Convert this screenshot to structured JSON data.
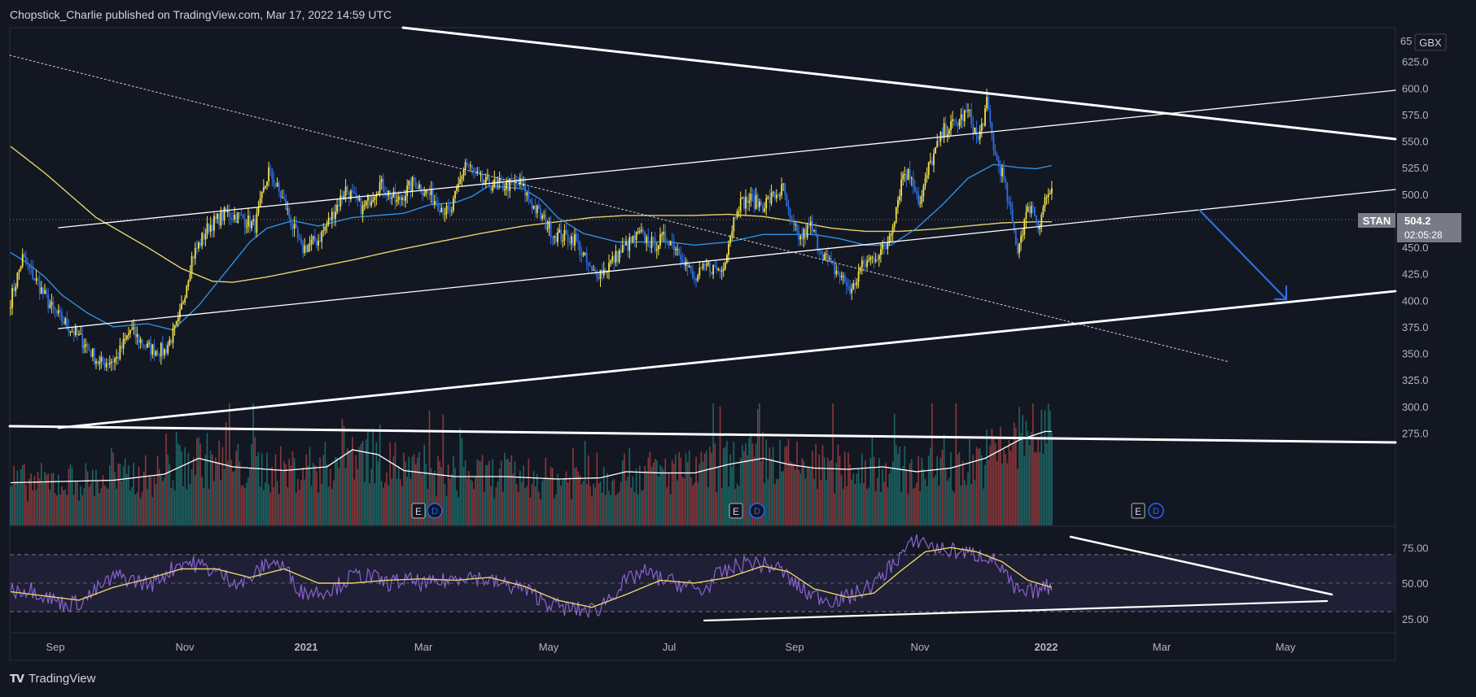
{
  "header": {
    "publisher": "Chopstick_Charlie published on TradingView.com, Mar 17, 2022 14:59 UTC"
  },
  "footer": {
    "brand": "TradingView"
  },
  "chart_data": {
    "type": "candlestick",
    "symbol": "STAN",
    "currency": "GBX",
    "last_price": "504.2",
    "countdown": "02:05:28",
    "price_axis": {
      "ticks": [
        "625.0",
        "600.0",
        "575.0",
        "550.0",
        "525.0",
        "500.0",
        "475.0",
        "450.0",
        "425.0",
        "400.0",
        "375.0",
        "350.0",
        "325.0",
        "300.0",
        "275.0"
      ],
      "top_partial": "65",
      "range": [
        260,
        660
      ]
    },
    "rsi_axis": {
      "ticks": [
        "75.00",
        "50.00",
        "25.00"
      ],
      "range": [
        15,
        90
      ],
      "band": [
        30,
        70
      ]
    },
    "time_axis": {
      "labels": [
        "Sep",
        "Nov",
        "2021",
        "Mar",
        "May",
        "Jul",
        "Sep",
        "Nov",
        "2022",
        "Mar",
        "May"
      ]
    },
    "earnings_markers": [
      {
        "date": "2021-02",
        "labels": [
          "E",
          "D"
        ]
      },
      {
        "date": "2021-07",
        "labels": [
          "E",
          "D"
        ]
      },
      {
        "date": "2022-02",
        "labels": [
          "E",
          "D"
        ]
      }
    ],
    "price_anchors": [
      [
        0,
        400
      ],
      [
        7,
        440
      ],
      [
        25,
        390
      ],
      [
        43,
        360
      ],
      [
        52,
        340
      ],
      [
        62,
        345
      ],
      [
        70,
        372
      ],
      [
        80,
        355
      ],
      [
        90,
        352
      ],
      [
        98,
        378
      ],
      [
        106,
        440
      ],
      [
        116,
        470
      ],
      [
        126,
        482
      ],
      [
        135,
        478
      ],
      [
        143,
        470
      ],
      [
        151,
        522
      ],
      [
        160,
        492
      ],
      [
        170,
        448
      ],
      [
        180,
        457
      ],
      [
        188,
        480
      ],
      [
        196,
        505
      ],
      [
        206,
        486
      ],
      [
        216,
        510
      ],
      [
        226,
        492
      ],
      [
        236,
        512
      ],
      [
        246,
        498
      ],
      [
        257,
        480
      ],
      [
        266,
        530
      ],
      [
        276,
        510
      ],
      [
        288,
        508
      ],
      [
        298,
        510
      ],
      [
        306,
        488
      ],
      [
        318,
        462
      ],
      [
        330,
        458
      ],
      [
        340,
        425
      ],
      [
        347,
        428
      ],
      [
        358,
        448
      ],
      [
        368,
        462
      ],
      [
        376,
        452
      ],
      [
        384,
        460
      ],
      [
        392,
        445
      ],
      [
        400,
        418
      ],
      [
        407,
        432
      ],
      [
        416,
        428
      ],
      [
        425,
        490
      ],
      [
        432,
        495
      ],
      [
        440,
        490
      ],
      [
        448,
        500
      ],
      [
        452,
        505
      ],
      [
        456,
        472
      ],
      [
        462,
        458
      ],
      [
        468,
        470
      ],
      [
        473,
        450
      ],
      [
        480,
        432
      ],
      [
        486,
        422
      ],
      [
        492,
        408
      ],
      [
        497,
        430
      ],
      [
        504,
        440
      ],
      [
        512,
        450
      ],
      [
        517,
        480
      ],
      [
        522,
        520
      ],
      [
        527,
        518
      ],
      [
        532,
        490
      ],
      [
        537,
        525
      ],
      [
        546,
        560
      ],
      [
        554,
        568
      ],
      [
        560,
        578
      ],
      [
        566,
        550
      ],
      [
        571,
        585
      ],
      [
        576,
        535
      ],
      [
        580,
        520
      ],
      [
        585,
        480
      ],
      [
        589,
        448
      ],
      [
        593,
        475
      ],
      [
        597,
        492
      ],
      [
        601,
        470
      ],
      [
        605,
        495
      ],
      [
        609,
        504
      ]
    ],
    "sma_blue_anchors": [
      [
        0,
        445
      ],
      [
        10,
        435
      ],
      [
        20,
        422
      ],
      [
        30,
        405
      ],
      [
        45,
        388
      ],
      [
        60,
        375
      ],
      [
        80,
        378
      ],
      [
        95,
        372
      ],
      [
        110,
        395
      ],
      [
        125,
        425
      ],
      [
        140,
        455
      ],
      [
        150,
        468
      ],
      [
        165,
        475
      ],
      [
        180,
        470
      ],
      [
        200,
        478
      ],
      [
        215,
        480
      ],
      [
        230,
        482
      ],
      [
        245,
        490
      ],
      [
        260,
        492
      ],
      [
        270,
        498
      ],
      [
        280,
        508
      ],
      [
        300,
        505
      ],
      [
        310,
        495
      ],
      [
        320,
        478
      ],
      [
        335,
        463
      ],
      [
        355,
        455
      ],
      [
        370,
        455
      ],
      [
        385,
        455
      ],
      [
        400,
        452
      ],
      [
        420,
        455
      ],
      [
        440,
        462
      ],
      [
        455,
        462
      ],
      [
        470,
        462
      ],
      [
        485,
        458
      ],
      [
        500,
        452
      ],
      [
        515,
        452
      ],
      [
        530,
        468
      ],
      [
        545,
        490
      ],
      [
        560,
        515
      ],
      [
        575,
        528
      ],
      [
        590,
        525
      ],
      [
        600,
        524
      ],
      [
        609,
        527
      ]
    ],
    "sma_yellow_anchors": [
      [
        0,
        545
      ],
      [
        20,
        520
      ],
      [
        50,
        478
      ],
      [
        80,
        450
      ],
      [
        100,
        430
      ],
      [
        118,
        418
      ],
      [
        130,
        417
      ],
      [
        150,
        422
      ],
      [
        175,
        430
      ],
      [
        200,
        438
      ],
      [
        225,
        447
      ],
      [
        250,
        455
      ],
      [
        275,
        463
      ],
      [
        300,
        470
      ],
      [
        320,
        474
      ],
      [
        340,
        478
      ],
      [
        360,
        480
      ],
      [
        380,
        480
      ],
      [
        400,
        480
      ],
      [
        420,
        481
      ],
      [
        440,
        479
      ],
      [
        460,
        474
      ],
      [
        480,
        468
      ],
      [
        500,
        465
      ],
      [
        520,
        465
      ],
      [
        540,
        467
      ],
      [
        560,
        470
      ],
      [
        580,
        473
      ],
      [
        600,
        474
      ],
      [
        609,
        474
      ]
    ],
    "rsi_anchors": [
      [
        0,
        45
      ],
      [
        12,
        46
      ],
      [
        22,
        40
      ],
      [
        32,
        35
      ],
      [
        42,
        37
      ],
      [
        52,
        47
      ],
      [
        62,
        55
      ],
      [
        72,
        52
      ],
      [
        82,
        49
      ],
      [
        90,
        56
      ],
      [
        100,
        65
      ],
      [
        110,
        63
      ],
      [
        120,
        58
      ],
      [
        128,
        53
      ],
      [
        136,
        50
      ],
      [
        144,
        57
      ],
      [
        152,
        66
      ],
      [
        160,
        61
      ],
      [
        170,
        44
      ],
      [
        180,
        44
      ],
      [
        190,
        47
      ],
      [
        200,
        55
      ],
      [
        210,
        55
      ],
      [
        220,
        50
      ],
      [
        232,
        52
      ],
      [
        244,
        49
      ],
      [
        256,
        52
      ],
      [
        266,
        56
      ],
      [
        276,
        53
      ],
      [
        288,
        49
      ],
      [
        298,
        47
      ],
      [
        306,
        42
      ],
      [
        315,
        36
      ],
      [
        325,
        32
      ],
      [
        335,
        31
      ],
      [
        343,
        31
      ],
      [
        350,
        40
      ],
      [
        360,
        51
      ],
      [
        370,
        58
      ],
      [
        380,
        53
      ],
      [
        390,
        50
      ],
      [
        398,
        47
      ],
      [
        405,
        44
      ],
      [
        413,
        55
      ],
      [
        425,
        62
      ],
      [
        432,
        65
      ],
      [
        440,
        63
      ],
      [
        450,
        60
      ],
      [
        458,
        50
      ],
      [
        466,
        43
      ],
      [
        474,
        40
      ],
      [
        482,
        38
      ],
      [
        490,
        40
      ],
      [
        500,
        46
      ],
      [
        508,
        52
      ],
      [
        516,
        64
      ],
      [
        524,
        74
      ],
      [
        532,
        81
      ],
      [
        540,
        75
      ],
      [
        548,
        73
      ],
      [
        556,
        72
      ],
      [
        564,
        70
      ],
      [
        572,
        69
      ],
      [
        580,
        60
      ],
      [
        586,
        47
      ],
      [
        592,
        42
      ],
      [
        598,
        44
      ],
      [
        605,
        47
      ],
      [
        609,
        48
      ]
    ],
    "rsi_ma_anchors": [
      [
        0,
        44
      ],
      [
        20,
        41
      ],
      [
        40,
        38
      ],
      [
        60,
        47
      ],
      [
        80,
        53
      ],
      [
        100,
        60
      ],
      [
        120,
        60
      ],
      [
        140,
        54
      ],
      [
        160,
        60
      ],
      [
        180,
        50
      ],
      [
        200,
        50
      ],
      [
        220,
        52
      ],
      [
        240,
        53
      ],
      [
        260,
        52
      ],
      [
        280,
        54
      ],
      [
        300,
        48
      ],
      [
        320,
        38
      ],
      [
        340,
        33
      ],
      [
        360,
        42
      ],
      [
        380,
        52
      ],
      [
        400,
        50
      ],
      [
        420,
        54
      ],
      [
        440,
        62
      ],
      [
        455,
        58
      ],
      [
        470,
        46
      ],
      [
        490,
        40
      ],
      [
        505,
        43
      ],
      [
        520,
        58
      ],
      [
        535,
        72
      ],
      [
        550,
        75
      ],
      [
        565,
        72
      ],
      [
        580,
        65
      ],
      [
        595,
        52
      ],
      [
        609,
        47
      ]
    ],
    "volume_ma_anchors": [
      [
        0,
        0.35
      ],
      [
        30,
        0.36
      ],
      [
        60,
        0.37
      ],
      [
        90,
        0.42
      ],
      [
        110,
        0.55
      ],
      [
        130,
        0.48
      ],
      [
        160,
        0.45
      ],
      [
        185,
        0.48
      ],
      [
        200,
        0.62
      ],
      [
        215,
        0.58
      ],
      [
        230,
        0.45
      ],
      [
        260,
        0.4
      ],
      [
        290,
        0.4
      ],
      [
        320,
        0.38
      ],
      [
        345,
        0.39
      ],
      [
        360,
        0.44
      ],
      [
        380,
        0.43
      ],
      [
        400,
        0.43
      ],
      [
        420,
        0.5
      ],
      [
        440,
        0.55
      ],
      [
        455,
        0.5
      ],
      [
        470,
        0.47
      ],
      [
        490,
        0.46
      ],
      [
        510,
        0.48
      ],
      [
        530,
        0.44
      ],
      [
        550,
        0.47
      ],
      [
        570,
        0.55
      ],
      [
        590,
        0.7
      ],
      [
        605,
        0.77
      ],
      [
        609,
        0.77
      ]
    ]
  }
}
